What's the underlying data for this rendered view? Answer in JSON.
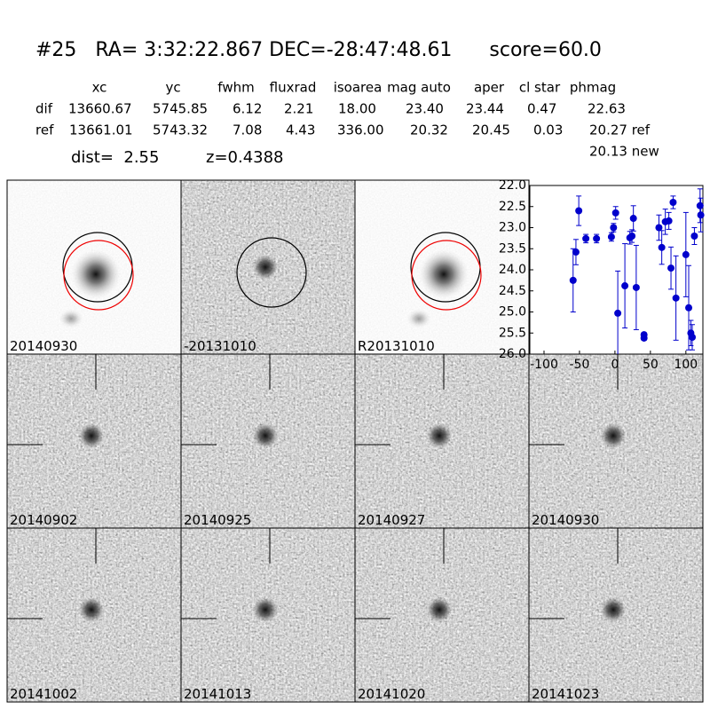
{
  "header": {
    "title": "#25   RA= 3:32:22.867 DEC=-28:47:48.61      score=60.0",
    "distance": "dist=  2.55",
    "redshift": "z=0.4388"
  },
  "table": {
    "columns": [
      "xc",
      "yc",
      "fwhm",
      "fluxrad",
      "isoarea",
      "mag auto",
      "aper",
      "cl star",
      "phmag"
    ],
    "rows": [
      {
        "label": "dif",
        "values": [
          "13660.67",
          "5745.85",
          "6.12",
          "2.21",
          "18.00",
          "23.40",
          "23.44",
          "0.47",
          "22.63"
        ]
      },
      {
        "label": "ref",
        "values": [
          "13661.01",
          "5743.32",
          "7.08",
          "4.43",
          "336.00",
          "20.32",
          "20.45",
          "0.03",
          "20.27 ref"
        ]
      }
    ],
    "extra": "20.13 new"
  },
  "stamps": [
    {
      "label": "20140930"
    },
    {
      "label": "-20131010"
    },
    {
      "label": "R20131010"
    },
    {
      "label": "20140902"
    },
    {
      "label": "20140925"
    },
    {
      "label": "20140927"
    },
    {
      "label": "20140930",
      "label_color": "#ff0000"
    },
    {
      "label": "20141002"
    },
    {
      "label": "20141013"
    },
    {
      "label": "20141020"
    },
    {
      "label": "20141023"
    }
  ],
  "chart_data": {
    "type": "scatter",
    "x": [
      -59,
      -55,
      -51,
      -41,
      -26,
      -5,
      -2,
      1,
      4,
      14,
      21,
      24,
      26,
      30,
      41,
      41,
      62,
      66,
      71,
      76,
      79,
      82,
      86,
      100,
      104,
      107,
      109,
      112,
      120,
      121
    ],
    "values": [
      24.25,
      23.58,
      22.6,
      23.26,
      23.26,
      23.22,
      23.0,
      22.65,
      25.03,
      24.38,
      23.24,
      23.2,
      22.78,
      24.42,
      25.54,
      25.62,
      23.0,
      23.47,
      22.86,
      22.84,
      23.96,
      22.4,
      24.67,
      23.64,
      24.9,
      25.5,
      25.6,
      23.2,
      22.48,
      22.7
    ],
    "errors": [
      0.75,
      0.3,
      0.35,
      0.1,
      0.1,
      0.1,
      0.1,
      0.15,
      1.0,
      1.0,
      0.15,
      0.15,
      0.3,
      1.0,
      0.05,
      0.05,
      0.3,
      0.4,
      0.3,
      0.2,
      0.5,
      0.15,
      1.0,
      1.0,
      1.0,
      0.3,
      0.3,
      0.2,
      0.4,
      0.4
    ],
    "color": "#0000cc",
    "xlim": [
      -120,
      124
    ],
    "ylim": [
      26,
      22
    ],
    "xticks": [
      -100,
      -50,
      0,
      50,
      100
    ],
    "yticks": [
      {
        "value": 22,
        "label": "22.0"
      },
      22.5,
      {
        "value": 23,
        "label": "23.0"
      },
      23.5,
      {
        "value": 24,
        "label": "24.0"
      },
      24.5,
      {
        "value": 25,
        "label": "25.0"
      },
      25.5,
      {
        "value": 26,
        "label": "26.0"
      }
    ]
  }
}
